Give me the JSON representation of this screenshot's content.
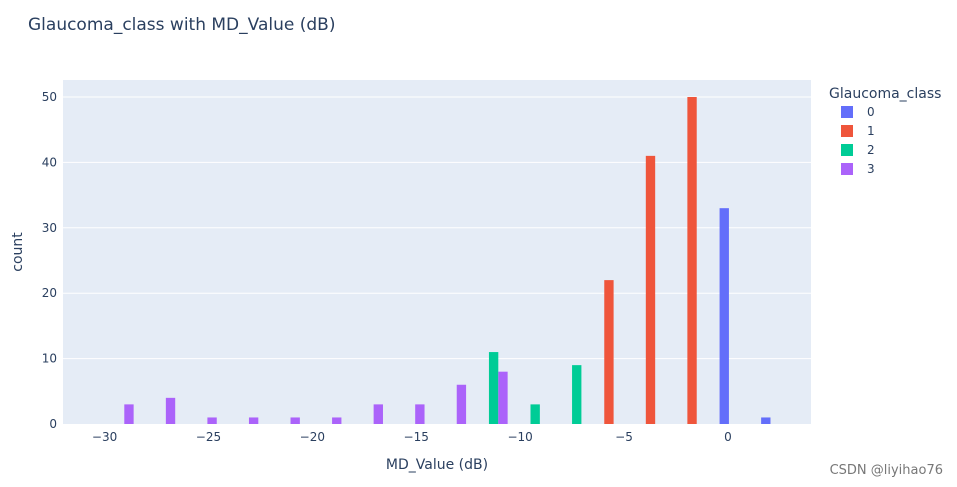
{
  "chart_data": {
    "type": "bar",
    "title": "Glaucoma_class with MD_Value (dB)",
    "xlabel": "MD_Value (dB)",
    "ylabel": "count",
    "xlim": [
      -32,
      4
    ],
    "ylim": [
      0,
      52.6
    ],
    "x_ticks": [
      -30,
      -25,
      -20,
      -15,
      -10,
      -5,
      0
    ],
    "x_tick_labels": [
      "−30",
      "−25",
      "−20",
      "−15",
      "−10",
      "−5",
      "0"
    ],
    "y_ticks": [
      0,
      10,
      20,
      30,
      40,
      50
    ],
    "bin_width": 2,
    "grid": true,
    "legend_title": "Glaucoma_class",
    "legend_position": "right",
    "series": [
      {
        "name": "0",
        "color": "#636efa",
        "x": [
          0.5,
          2.5
        ],
        "values": [
          33,
          1
        ]
      },
      {
        "name": "1",
        "color": "#ef553b",
        "x": [
          -5.5,
          -3.5,
          -1.5
        ],
        "values": [
          22,
          41,
          50
        ]
      },
      {
        "name": "2",
        "color": "#00cc96",
        "x": [
          -11.5,
          -9.5,
          -7.5
        ],
        "values": [
          11,
          3,
          9
        ]
      },
      {
        "name": "3",
        "color": "#ab63fa",
        "x": [
          -29.5,
          -27.5,
          -25.5,
          -23.5,
          -21.5,
          -19.5,
          -17.5,
          -15.5,
          -13.5,
          -11.5
        ],
        "values": [
          3,
          4,
          1,
          1,
          1,
          1,
          3,
          3,
          6,
          8
        ]
      }
    ]
  },
  "watermark": "CSDN @liyihao76"
}
